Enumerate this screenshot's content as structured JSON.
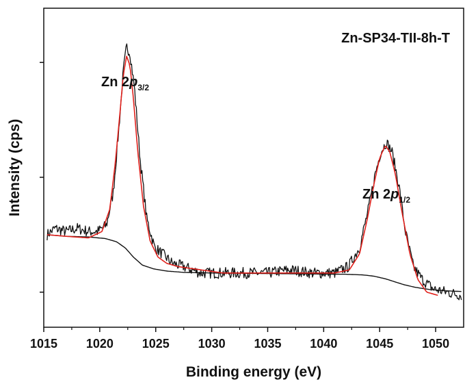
{
  "chart_data": {
    "type": "line",
    "title": "Zn-SP34-TII-8h-T",
    "xlabel": "Binding energy (eV)",
    "ylabel": "Intensity (cps)",
    "xlim": [
      1015,
      1052.5
    ],
    "ylim": [
      0,
      1
    ],
    "x_ticks": [
      1015,
      1020,
      1025,
      1030,
      1035,
      1040,
      1045,
      1050
    ],
    "show_y_tick_labels": false,
    "grid": false,
    "legend": "none",
    "colors": {
      "raw": "#111111",
      "fit": "#e0201b",
      "background": "#111111"
    },
    "annotations": [
      {
        "prefix": "Zn 2",
        "italic": "p",
        "subscript": "3/2",
        "x": 1022.4
      },
      {
        "prefix": "Zn 2",
        "italic": "p",
        "subscript": "1/2",
        "x": 1045.6
      }
    ],
    "series": [
      {
        "role": "raw",
        "x": [
          1015.3,
          1016,
          1017,
          1018,
          1019,
          1019.8,
          1020.6,
          1021.2,
          1021.7,
          1022.1,
          1022.4,
          1022.7,
          1023.1,
          1023.6,
          1024.2,
          1024.9,
          1025.6,
          1026.5,
          1027.5,
          1029,
          1031,
          1033,
          1035,
          1037,
          1039,
          1041,
          1042.2,
          1043.2,
          1044,
          1044.6,
          1045.1,
          1045.6,
          1046.1,
          1046.7,
          1047.3,
          1048,
          1048.8,
          1049.8,
          1051,
          1052.3
        ],
        "y": [
          0.29,
          0.31,
          0.3,
          0.31,
          0.3,
          0.3,
          0.32,
          0.42,
          0.62,
          0.8,
          0.88,
          0.86,
          0.75,
          0.53,
          0.34,
          0.25,
          0.23,
          0.2,
          0.19,
          0.17,
          0.17,
          0.17,
          0.17,
          0.18,
          0.17,
          0.17,
          0.19,
          0.25,
          0.37,
          0.48,
          0.55,
          0.58,
          0.55,
          0.45,
          0.3,
          0.19,
          0.15,
          0.12,
          0.11,
          0.1
        ]
      },
      {
        "role": "fit",
        "x": [
          1015.3,
          1017,
          1019,
          1020.2,
          1020.9,
          1021.4,
          1021.8,
          1022.1,
          1022.4,
          1022.7,
          1023,
          1023.4,
          1023.9,
          1024.5,
          1025.2,
          1026,
          1027,
          1029,
          1031,
          1033,
          1035,
          1037,
          1039,
          1041,
          1042.3,
          1043.2,
          1043.9,
          1044.5,
          1045,
          1045.5,
          1045.9,
          1046.4,
          1047,
          1047.7,
          1048.4,
          1049.2,
          1050.2
        ],
        "y": [
          0.29,
          0.285,
          0.28,
          0.3,
          0.37,
          0.52,
          0.67,
          0.79,
          0.85,
          0.82,
          0.72,
          0.55,
          0.38,
          0.27,
          0.22,
          0.2,
          0.19,
          0.18,
          0.17,
          0.17,
          0.17,
          0.17,
          0.17,
          0.17,
          0.18,
          0.23,
          0.34,
          0.45,
          0.53,
          0.57,
          0.55,
          0.48,
          0.36,
          0.23,
          0.15,
          0.11,
          0.1
        ]
      },
      {
        "role": "background",
        "x": [
          1015.3,
          1017,
          1019,
          1020.5,
          1021.5,
          1022.3,
          1023,
          1023.8,
          1024.8,
          1026,
          1027.5,
          1030,
          1033,
          1036,
          1039,
          1042,
          1043.5,
          1044.5,
          1045.5,
          1046.3,
          1047.2,
          1048.2,
          1049.5,
          1051,
          1052.3
        ],
        "y": [
          0.29,
          0.285,
          0.283,
          0.278,
          0.268,
          0.248,
          0.22,
          0.195,
          0.183,
          0.176,
          0.172,
          0.17,
          0.169,
          0.168,
          0.167,
          0.166,
          0.164,
          0.16,
          0.152,
          0.143,
          0.133,
          0.125,
          0.118,
          0.114,
          0.112
        ]
      }
    ]
  }
}
